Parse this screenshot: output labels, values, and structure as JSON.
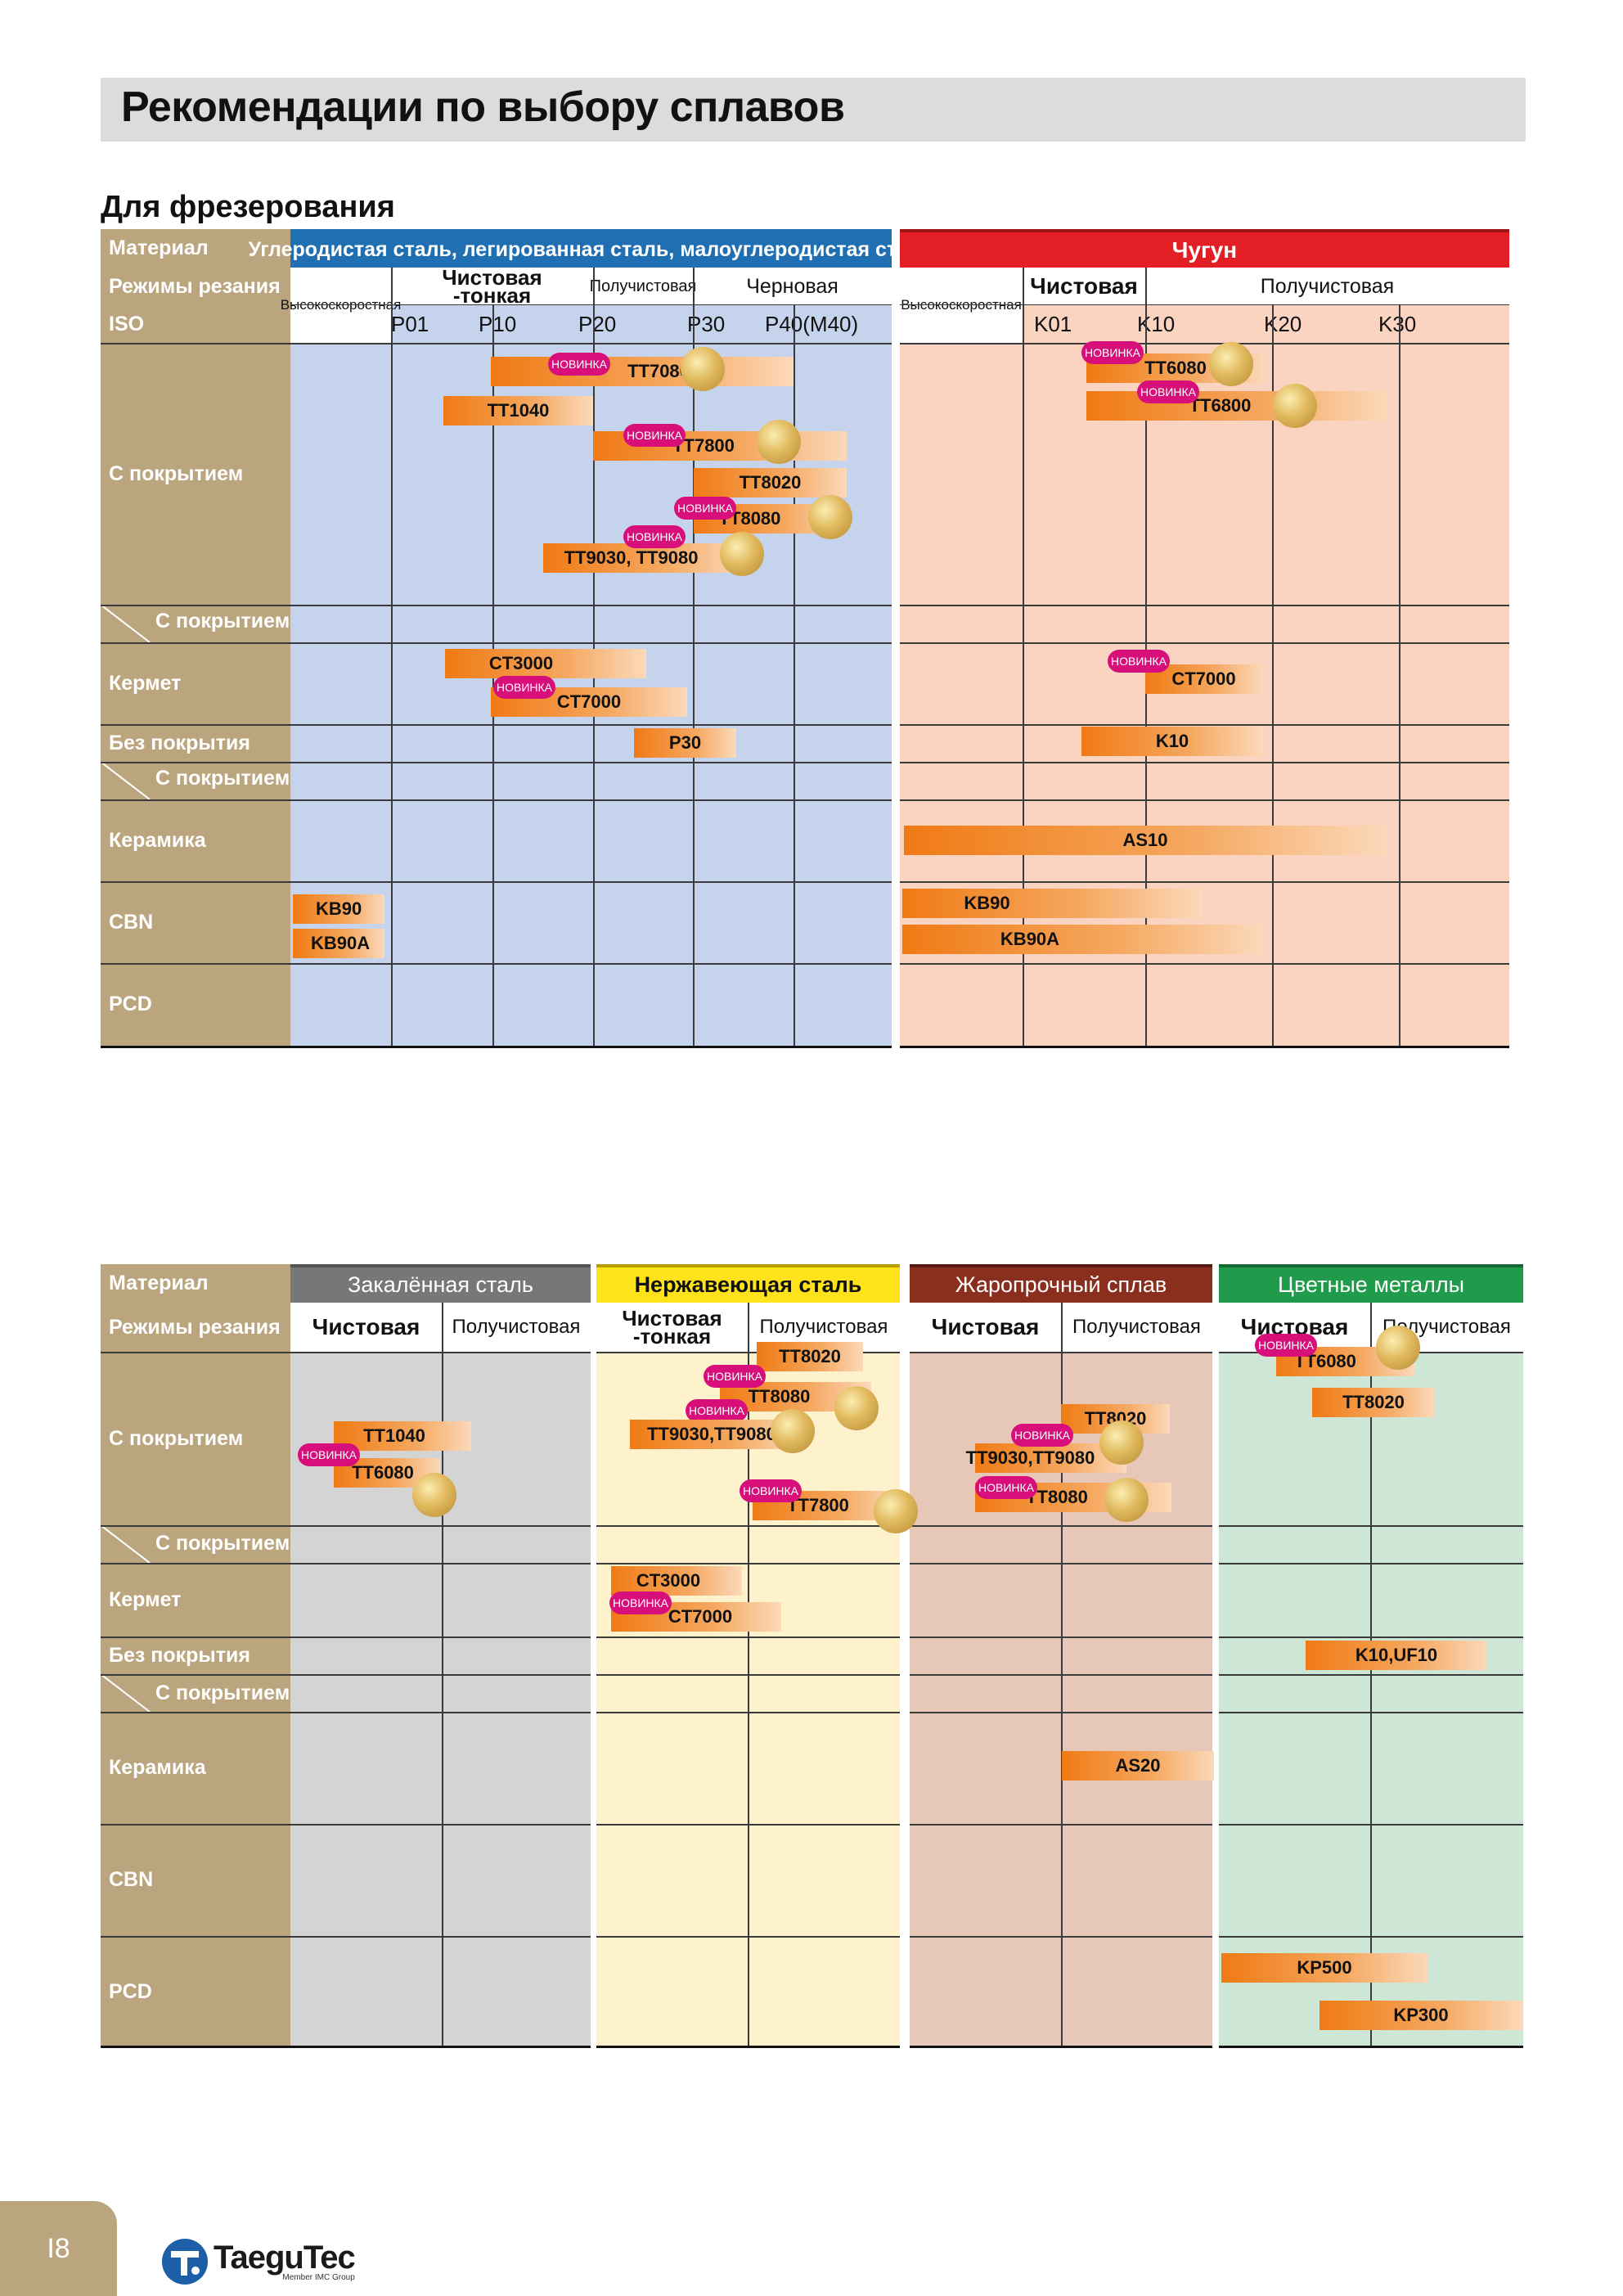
{
  "page": {
    "title": "Рекомендации по выбору сплавов",
    "section": "Для фрезерования",
    "page_number": "I8",
    "logo_text": "TaeguTec",
    "logo_tagline": "Member IMC Group"
  },
  "labels": {
    "material": "Материал",
    "modes": "Режимы резания",
    "iso": "ISO",
    "coated": "С покрытием",
    "coated_sub": "С покрытием",
    "cermet": "Кермет",
    "uncoated": "Без покрытия",
    "ceramic": "Керамика",
    "cbn": "CBN",
    "pcd": "PCD"
  },
  "new_badge": "НОВИНКА",
  "top_table": {
    "steel_header": "Углеродистая сталь, легированная сталь, малоуглеродистая сталь",
    "cast_header": "Чугун",
    "steel_modes": {
      "high_speed": "Высокоскоростная",
      "finish_thin": "Чистовая -тонкая",
      "semi": "Получистовая",
      "rough": "Черновая"
    },
    "cast_modes": {
      "high_speed": "Высокоскоростная",
      "finish": "Чистовая",
      "semi": "Получистовая"
    },
    "steel_iso": [
      "P01",
      "P10",
      "P20",
      "P30",
      "P40(M40)"
    ],
    "cast_iso": [
      "K01",
      "K10",
      "K20",
      "K30"
    ]
  },
  "top_bars": [
    {
      "label": "TT7080",
      "new": true,
      "coin": true
    },
    {
      "label": "TT1040",
      "new": false,
      "coin": false
    },
    {
      "label": "TT7800",
      "new": true,
      "coin": true
    },
    {
      "label": "TT8020",
      "new": false,
      "coin": false
    },
    {
      "label": "TT8080",
      "new": true,
      "coin": true
    },
    {
      "label": "TT9030, TT9080",
      "new": true,
      "coin": true
    },
    {
      "label": "TT6080",
      "new": true,
      "coin": true
    },
    {
      "label": "TT6800",
      "new": true,
      "coin": true
    },
    {
      "label": "CT3000",
      "new": false,
      "coin": false
    },
    {
      "label": "CT7000",
      "new": true,
      "coin": false
    },
    {
      "label": "CT7000",
      "new": true,
      "coin": false
    },
    {
      "label": "P30",
      "new": false,
      "coin": false
    },
    {
      "label": "K10",
      "new": false,
      "coin": false
    },
    {
      "label": "AS10",
      "new": false,
      "coin": false
    },
    {
      "label": "KB90",
      "new": false,
      "coin": false
    },
    {
      "label": "KB90A",
      "new": false,
      "coin": false
    },
    {
      "label": "KB90",
      "new": false,
      "coin": false
    },
    {
      "label": "KB90A",
      "new": false,
      "coin": false
    }
  ],
  "bottom_table": {
    "headers": [
      {
        "label": "Закалённая сталь",
        "color": "#777777",
        "text": "#ffffff"
      },
      {
        "label": "Нержавеющая сталь",
        "color": "#ffe31a",
        "text": "#111111"
      },
      {
        "label": "Жаропрочный сплав",
        "color": "#8a2e1e",
        "text": "#ffffff"
      },
      {
        "label": "Цветные металлы",
        "color": "#1f9b4b",
        "text": "#ffffff"
      }
    ],
    "modes": [
      {
        "finish": "Чистовая",
        "semi": "Получистовая"
      },
      {
        "finish": "Чистовая -тонкая",
        "semi": "Получистовая"
      },
      {
        "finish": "Чистовая",
        "semi": "Получистовая"
      },
      {
        "finish": "Чистовая",
        "semi": "Получистовая"
      }
    ]
  },
  "bottom_bars": [
    {
      "label": "TT1040",
      "new": false,
      "coin": false
    },
    {
      "label": "TT6080",
      "new": true,
      "coin": true
    },
    {
      "label": "TT8020",
      "new": false,
      "coin": false
    },
    {
      "label": "TT8080",
      "new": true,
      "coin": true
    },
    {
      "label": "TT9030,TT9080",
      "new": false,
      "coin": true
    },
    {
      "label": "TT7800",
      "new": true,
      "coin": true
    },
    {
      "label": "CT3000",
      "new": false,
      "coin": false
    },
    {
      "label": "CT7000",
      "new": true,
      "coin": false
    },
    {
      "label": "TT8020",
      "new": false,
      "coin": false
    },
    {
      "label": "TT9030,TT9080",
      "new": true,
      "coin": true
    },
    {
      "label": "TT8080",
      "new": true,
      "coin": true
    },
    {
      "label": "AS20",
      "new": false,
      "coin": false
    },
    {
      "label": "TT6080",
      "new": true,
      "coin": true
    },
    {
      "label": "TT8020",
      "new": false,
      "coin": false
    },
    {
      "label": "K10,UF10",
      "new": false,
      "coin": false
    },
    {
      "label": "KP500",
      "new": false,
      "coin": false
    },
    {
      "label": "KP300",
      "new": false,
      "coin": false
    }
  ],
  "colors": {
    "label_col": "#bba57e",
    "steel_bg": "#c6d3ed",
    "cast_bg": "#fbd3c1",
    "hardened_bg": "#d4d4d4",
    "stainless_bg": "#fdf2cc",
    "heatres_bg": "#e7c8b8",
    "nonferrous_bg": "#cde6d6",
    "steel_header": "#1f6fb2",
    "cast_header": "#e31e24"
  }
}
